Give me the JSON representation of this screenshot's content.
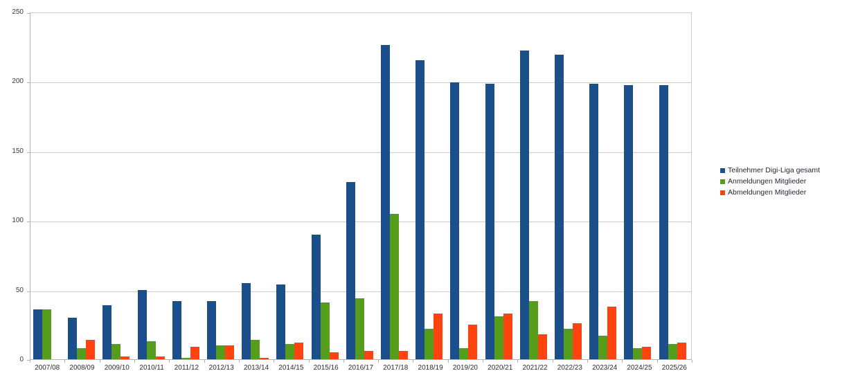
{
  "chart_data": {
    "type": "bar",
    "title": "",
    "categories": [
      "2007/08",
      "2008/09",
      "2009/10",
      "2010/11",
      "2011/12",
      "2012/13",
      "2013/14",
      "2014/15",
      "2015/16",
      "2016/17",
      "2017/18",
      "2018/19",
      "2019/20",
      "2020/21",
      "2021/22",
      "2022/23",
      "2023/24",
      "2024/25",
      "2025/26"
    ],
    "series": [
      {
        "name": "Teilnehmer Digi-Liga gesamt",
        "color": "#1a4f8c",
        "values": [
          36,
          30,
          39,
          50,
          42,
          42,
          55,
          54,
          90,
          128,
          227,
          216,
          200,
          199,
          223,
          220,
          199,
          198,
          198
        ]
      },
      {
        "name": "Anmeldungen Mitglieder",
        "color": "#579d1c",
        "values": [
          36,
          8,
          11,
          13,
          1,
          10,
          14,
          11,
          41,
          44,
          105,
          22,
          8,
          31,
          42,
          22,
          17,
          8,
          11
        ]
      },
      {
        "name": "Abmeldungen Mitglieder",
        "color": "#ff420e",
        "values": [
          0,
          14,
          2,
          2,
          9,
          10,
          1,
          12,
          5,
          6,
          6,
          33,
          25,
          33,
          18,
          26,
          38,
          9,
          12
        ]
      }
    ],
    "ylim": [
      0,
      250
    ],
    "yticks": [
      0,
      50,
      100,
      150,
      200,
      250
    ],
    "grid": true,
    "legend_position": "right",
    "xlabel": "",
    "ylabel": ""
  },
  "colors": {
    "background": "#ffffff",
    "gridline": "#cccccc",
    "axis": "#b3b3b3",
    "tick_text": "#3a3a3a",
    "legend_text": "#1f2430"
  }
}
